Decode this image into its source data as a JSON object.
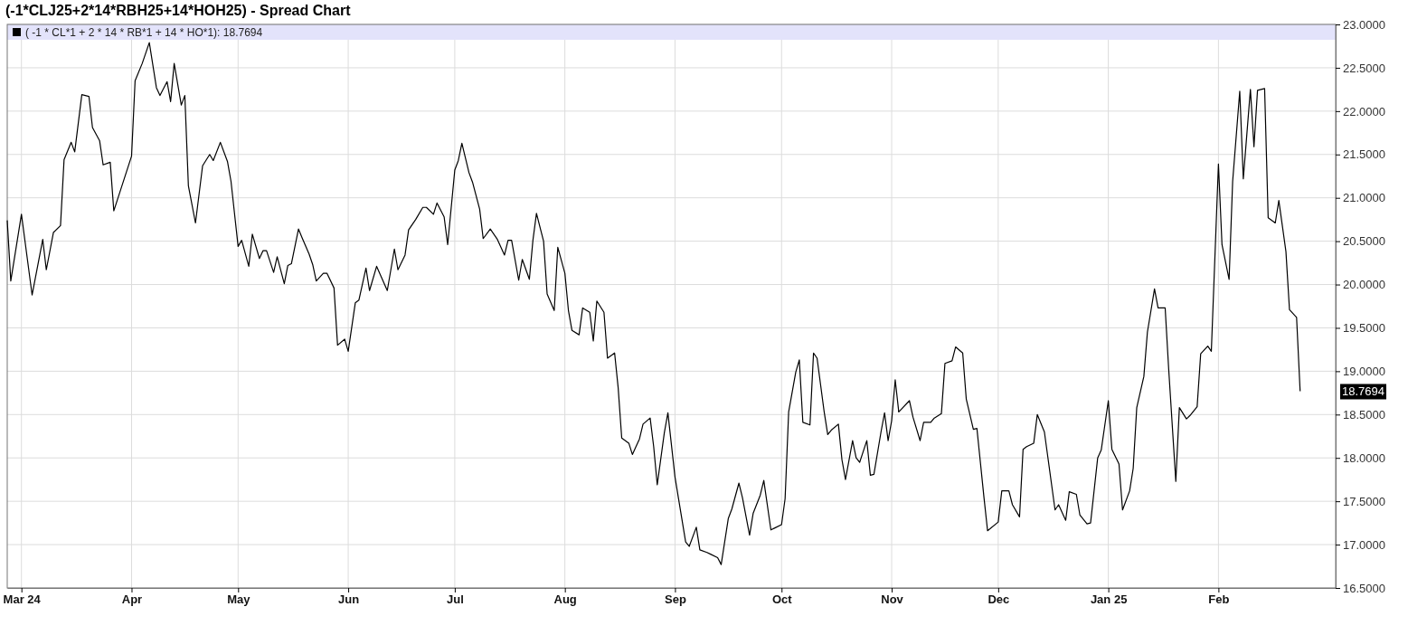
{
  "chart_data": {
    "type": "line",
    "title": "(-1*CLJ25+2*14*RBH25+14*HOH25) - Spread Chart",
    "x": [
      "2024-02-26",
      "2024-02-27",
      "2024-03-01",
      "2024-03-04",
      "2024-03-07",
      "2024-03-08",
      "2024-03-10",
      "2024-03-12",
      "2024-03-13",
      "2024-03-15",
      "2024-03-16",
      "2024-03-18",
      "2024-03-20",
      "2024-03-21",
      "2024-03-23",
      "2024-03-24",
      "2024-03-26",
      "2024-03-27",
      "2024-04-01",
      "2024-04-02",
      "2024-04-04",
      "2024-04-06",
      "2024-04-08",
      "2024-04-09",
      "2024-04-11",
      "2024-04-12",
      "2024-04-13",
      "2024-04-15",
      "2024-04-16",
      "2024-04-17",
      "2024-04-19",
      "2024-04-21",
      "2024-04-23",
      "2024-04-24",
      "2024-04-26",
      "2024-04-28",
      "2024-04-29",
      "2024-05-01",
      "2024-05-02",
      "2024-05-04",
      "2024-05-05",
      "2024-05-07",
      "2024-05-08",
      "2024-05-09",
      "2024-05-11",
      "2024-05-12",
      "2024-05-14",
      "2024-05-15",
      "2024-05-16",
      "2024-05-18",
      "2024-05-19",
      "2024-05-21",
      "2024-05-22",
      "2024-05-23",
      "2024-05-25",
      "2024-05-26",
      "2024-05-28",
      "2024-05-29",
      "2024-05-31",
      "2024-06-01",
      "2024-06-03",
      "2024-06-04",
      "2024-06-06",
      "2024-06-07",
      "2024-06-09",
      "2024-06-12",
      "2024-06-14",
      "2024-06-15",
      "2024-06-17",
      "2024-06-18",
      "2024-06-20",
      "2024-06-22",
      "2024-06-23",
      "2024-06-25",
      "2024-06-26",
      "2024-06-28",
      "2024-06-29",
      "2024-07-01",
      "2024-07-02",
      "2024-07-03",
      "2024-07-05",
      "2024-07-06",
      "2024-07-08",
      "2024-07-09",
      "2024-07-11",
      "2024-07-13",
      "2024-07-15",
      "2024-07-16",
      "2024-07-17",
      "2024-07-19",
      "2024-07-20",
      "2024-07-22",
      "2024-07-23",
      "2024-07-24",
      "2024-07-26",
      "2024-07-27",
      "2024-07-29",
      "2024-07-30",
      "2024-08-01",
      "2024-08-02",
      "2024-08-03",
      "2024-08-05",
      "2024-08-06",
      "2024-08-08",
      "2024-08-09",
      "2024-08-10",
      "2024-08-12",
      "2024-08-13",
      "2024-08-15",
      "2024-08-16",
      "2024-08-17",
      "2024-08-19",
      "2024-08-20",
      "2024-08-22",
      "2024-08-23",
      "2024-08-25",
      "2024-08-26",
      "2024-08-27",
      "2024-08-29",
      "2024-08-30",
      "2024-09-01",
      "2024-09-02",
      "2024-09-04",
      "2024-09-05",
      "2024-09-07",
      "2024-09-08",
      "2024-09-10",
      "2024-09-11",
      "2024-09-13",
      "2024-09-14",
      "2024-09-16",
      "2024-09-17",
      "2024-09-19",
      "2024-09-20",
      "2024-09-22",
      "2024-09-23",
      "2024-09-25",
      "2024-09-26",
      "2024-09-28",
      "2024-09-29",
      "2024-10-01",
      "2024-10-02",
      "2024-10-03",
      "2024-10-05",
      "2024-10-06",
      "2024-10-07",
      "2024-10-09",
      "2024-10-10",
      "2024-10-11",
      "2024-10-13",
      "2024-10-14",
      "2024-10-15",
      "2024-10-17",
      "2024-10-18",
      "2024-10-19",
      "2024-10-21",
      "2024-10-22",
      "2024-10-23",
      "2024-10-25",
      "2024-10-26",
      "2024-10-27",
      "2024-10-29",
      "2024-10-30",
      "2024-10-31",
      "2024-11-01",
      "2024-11-02",
      "2024-11-03",
      "2024-11-06",
      "2024-11-07",
      "2024-11-09",
      "2024-11-10",
      "2024-11-12",
      "2024-11-13",
      "2024-11-15",
      "2024-11-16",
      "2024-11-18",
      "2024-11-19",
      "2024-11-21",
      "2024-11-22",
      "2024-11-24",
      "2024-11-25",
      "2024-11-27",
      "2024-11-28",
      "2024-12-01",
      "2024-12-02",
      "2024-12-04",
      "2024-12-05",
      "2024-12-07",
      "2024-12-08",
      "2024-12-09",
      "2024-12-11",
      "2024-12-12",
      "2024-12-14",
      "2024-12-15",
      "2024-12-17",
      "2024-12-18",
      "2024-12-20",
      "2024-12-21",
      "2024-12-23",
      "2024-12-24",
      "2024-12-26",
      "2024-12-27",
      "2024-12-29",
      "2024-12-30",
      "2025-01-01",
      "2025-01-02",
      "2025-01-04",
      "2025-01-05",
      "2025-01-07",
      "2025-01-08",
      "2025-01-09",
      "2025-01-11",
      "2025-01-12",
      "2025-01-14",
      "2025-01-15",
      "2025-01-17",
      "2025-01-18",
      "2025-01-20",
      "2025-01-21",
      "2025-01-23",
      "2025-01-24",
      "2025-01-26",
      "2025-01-27",
      "2025-01-29",
      "2025-01-30",
      "2025-02-01",
      "2025-02-02",
      "2025-02-04",
      "2025-02-05",
      "2025-02-07",
      "2025-02-08",
      "2025-02-10",
      "2025-02-11",
      "2025-02-12",
      "2025-02-14",
      "2025-02-15",
      "2025-02-17",
      "2025-02-18",
      "2025-02-20",
      "2025-02-21",
      "2025-02-23",
      "2025-02-24"
    ],
    "series": [
      {
        "name": "( -1 * CL*1 + 2 * 14 * RB*1 + 14 * HO*1): 18.7694",
        "color": "#000000",
        "values": [
          20.74,
          20.04,
          20.81,
          19.88,
          20.52,
          20.17,
          20.6,
          20.68,
          21.44,
          21.64,
          21.53,
          22.19,
          22.17,
          21.81,
          21.66,
          21.38,
          21.41,
          20.85,
          21.48,
          22.35,
          22.55,
          22.79,
          22.27,
          22.18,
          22.34,
          22.11,
          22.55,
          22.07,
          22.18,
          21.14,
          20.71,
          21.37,
          21.5,
          21.43,
          21.64,
          21.42,
          21.19,
          20.44,
          20.51,
          20.21,
          20.58,
          20.3,
          20.39,
          20.39,
          20.14,
          20.32,
          20.01,
          20.22,
          20.24,
          20.64,
          20.54,
          20.35,
          20.23,
          20.04,
          20.13,
          20.13,
          19.96,
          19.3,
          19.37,
          19.23,
          19.79,
          19.82,
          20.19,
          19.93,
          20.21,
          19.93,
          20.41,
          20.17,
          20.34,
          20.63,
          20.75,
          20.89,
          20.89,
          20.81,
          20.94,
          20.78,
          20.46,
          21.32,
          21.43,
          21.63,
          21.29,
          21.18,
          20.87,
          20.53,
          20.64,
          20.52,
          20.34,
          20.51,
          20.51,
          20.05,
          20.29,
          20.06,
          20.51,
          20.82,
          20.5,
          19.89,
          19.7,
          20.43,
          20.13,
          19.7,
          19.47,
          19.42,
          19.73,
          19.68,
          19.35,
          19.81,
          19.68,
          19.15,
          19.21,
          18.81,
          18.23,
          18.17,
          18.04,
          18.22,
          18.39,
          18.46,
          18.13,
          17.69,
          18.29,
          18.52,
          17.78,
          17.53,
          17.03,
          16.98,
          17.2,
          16.94,
          16.91,
          16.89,
          16.85,
          16.77,
          17.3,
          17.41,
          17.71,
          17.54,
          17.11,
          17.36,
          17.57,
          17.74,
          17.17,
          17.19,
          17.23,
          17.53,
          18.53,
          18.99,
          19.13,
          18.41,
          18.38,
          19.21,
          19.15,
          18.53,
          18.27,
          18.32,
          18.39,
          17.98,
          17.75,
          18.2,
          18.0,
          17.95,
          18.2,
          17.8,
          17.81,
          18.3,
          18.52,
          18.2,
          18.43,
          18.9,
          18.53,
          18.66,
          18.47,
          18.2,
          18.41,
          18.41,
          18.46,
          18.51,
          19.09,
          19.12,
          19.28,
          19.21,
          18.68,
          18.33,
          18.34,
          17.54,
          17.16,
          17.26,
          17.62,
          17.62,
          17.46,
          17.32,
          18.1,
          18.13,
          18.17,
          18.5,
          18.3,
          18.0,
          17.4,
          17.46,
          17.28,
          17.61,
          17.58,
          17.34,
          17.24,
          17.25,
          18.0,
          18.09,
          18.66,
          18.1,
          17.93,
          17.4,
          17.62,
          17.88,
          18.58,
          18.94,
          19.45,
          19.95,
          19.73,
          19.73,
          19.02,
          17.73,
          18.58,
          18.45,
          18.49,
          18.59,
          19.2,
          19.29,
          19.23,
          21.39,
          20.46,
          20.06,
          21.19,
          22.23,
          21.22,
          22.25,
          21.59,
          22.24,
          22.26,
          20.77,
          20.71,
          20.97,
          20.38,
          19.71,
          19.62,
          18.7694
        ]
      }
    ],
    "xlim": [
      "2024-02-26",
      "2025-03-06"
    ],
    "xticks": [
      {
        "value": "2024-03-01",
        "label": "Mar 24"
      },
      {
        "value": "2024-04-01",
        "label": "Apr"
      },
      {
        "value": "2024-05-01",
        "label": "May"
      },
      {
        "value": "2024-06-01",
        "label": "Jun"
      },
      {
        "value": "2024-07-01",
        "label": "Jul"
      },
      {
        "value": "2024-08-01",
        "label": "Aug"
      },
      {
        "value": "2024-09-01",
        "label": "Sep"
      },
      {
        "value": "2024-10-01",
        "label": "Oct"
      },
      {
        "value": "2024-11-01",
        "label": "Nov"
      },
      {
        "value": "2024-12-01",
        "label": "Dec"
      },
      {
        "value": "2025-01-01",
        "label": "Jan 25"
      },
      {
        "value": "2025-02-01",
        "label": "Feb"
      }
    ],
    "ylim": [
      16.5,
      23
    ],
    "yticks": [
      {
        "value": 16.5,
        "label": "16.5000"
      },
      {
        "value": 17,
        "label": "17.0000"
      },
      {
        "value": 17.5,
        "label": "17.5000"
      },
      {
        "value": 18,
        "label": "18.0000"
      },
      {
        "value": 18.5,
        "label": "18.5000"
      },
      {
        "value": 19,
        "label": "19.0000"
      },
      {
        "value": 19.5,
        "label": "19.5000"
      },
      {
        "value": 20,
        "label": "20.0000"
      },
      {
        "value": 20.5,
        "label": "20.5000"
      },
      {
        "value": 21,
        "label": "21.0000"
      },
      {
        "value": 21.5,
        "label": "21.5000"
      },
      {
        "value": 22,
        "label": "22.0000"
      },
      {
        "value": 22.5,
        "label": "22.5000"
      },
      {
        "value": 23,
        "label": "23.0000"
      }
    ],
    "annotations": [
      "18.7694"
    ],
    "grid": true,
    "legend": "top left",
    "marker": "none",
    "line_style": "solid"
  }
}
